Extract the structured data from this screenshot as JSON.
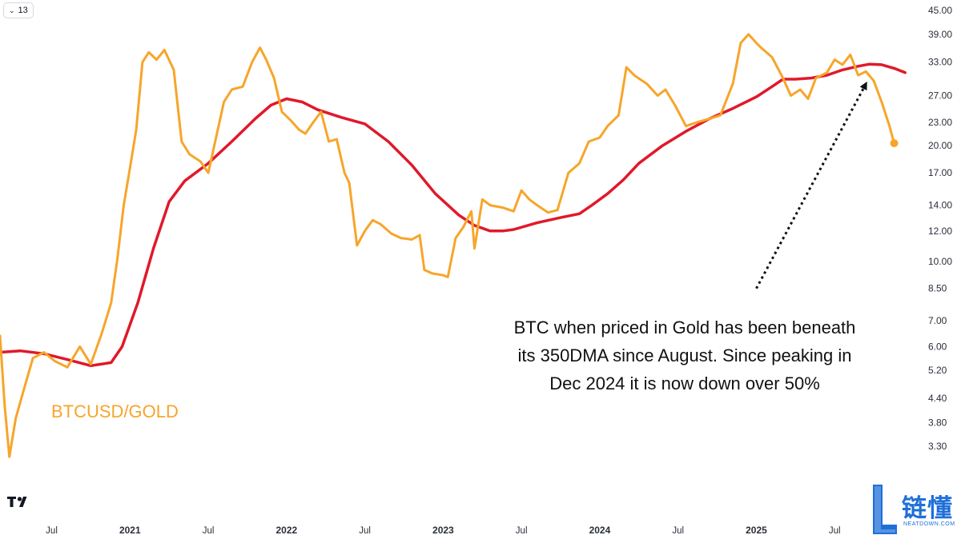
{
  "toolbar": {
    "interval_label": "13",
    "interval_icon": "chevron-down-icon"
  },
  "chart_data": {
    "type": "line",
    "title": "",
    "scale": "log",
    "ylim": [
      3.0,
      45.0
    ],
    "y_ticks": [
      "45.00",
      "39.00",
      "33.00",
      "27.00",
      "23.00",
      "20.00",
      "17.00",
      "14.00",
      "12.00",
      "10.00",
      "8.50",
      "7.00",
      "6.00",
      "5.20",
      "4.40",
      "3.80",
      "3.30"
    ],
    "x_ticks": [
      {
        "label": "Jul",
        "year": false,
        "t": 2020.5
      },
      {
        "label": "2021",
        "year": true,
        "t": 2021.0
      },
      {
        "label": "Jul",
        "year": false,
        "t": 2021.5
      },
      {
        "label": "2022",
        "year": true,
        "t": 2022.0
      },
      {
        "label": "Jul",
        "year": false,
        "t": 2022.5
      },
      {
        "label": "2023",
        "year": true,
        "t": 2023.0
      },
      {
        "label": "Jul",
        "year": false,
        "t": 2023.5
      },
      {
        "label": "2024",
        "year": true,
        "t": 2024.0
      },
      {
        "label": "Jul",
        "year": false,
        "t": 2024.5
      },
      {
        "label": "2025",
        "year": true,
        "t": 2025.0
      },
      {
        "label": "Jul",
        "year": false,
        "t": 2025.5
      }
    ],
    "xlim": [
      2020.17,
      2026.0
    ],
    "series": [
      {
        "name": "BTCUSD/GOLD",
        "color": "#f7a52a",
        "points": [
          [
            2020.17,
            6.4
          ],
          [
            2020.2,
            4.2
          ],
          [
            2020.23,
            3.1
          ],
          [
            2020.27,
            3.9
          ],
          [
            2020.32,
            4.6
          ],
          [
            2020.38,
            5.6
          ],
          [
            2020.45,
            5.8
          ],
          [
            2020.52,
            5.5
          ],
          [
            2020.6,
            5.3
          ],
          [
            2020.68,
            6.0
          ],
          [
            2020.75,
            5.4
          ],
          [
            2020.82,
            6.5
          ],
          [
            2020.88,
            7.8
          ],
          [
            2020.92,
            10.2
          ],
          [
            2020.96,
            14.0
          ],
          [
            2021.0,
            17.5
          ],
          [
            2021.04,
            22.0
          ],
          [
            2021.08,
            33.0
          ],
          [
            2021.12,
            35.0
          ],
          [
            2021.17,
            33.5
          ],
          [
            2021.22,
            35.5
          ],
          [
            2021.28,
            31.5
          ],
          [
            2021.33,
            20.5
          ],
          [
            2021.38,
            19.0
          ],
          [
            2021.45,
            18.2
          ],
          [
            2021.5,
            17.0
          ],
          [
            2021.55,
            21.0
          ],
          [
            2021.6,
            26.0
          ],
          [
            2021.65,
            28.0
          ],
          [
            2021.72,
            28.5
          ],
          [
            2021.78,
            33.0
          ],
          [
            2021.83,
            36.0
          ],
          [
            2021.87,
            33.5
          ],
          [
            2021.92,
            30.0
          ],
          [
            2021.97,
            24.5
          ],
          [
            2022.03,
            23.2
          ],
          [
            2022.08,
            22.0
          ],
          [
            2022.12,
            21.5
          ],
          [
            2022.17,
            23.0
          ],
          [
            2022.22,
            24.5
          ],
          [
            2022.27,
            20.5
          ],
          [
            2022.32,
            20.8
          ],
          [
            2022.37,
            17.0
          ],
          [
            2022.4,
            16.0
          ],
          [
            2022.45,
            11.0
          ],
          [
            2022.5,
            12.0
          ],
          [
            2022.55,
            12.8
          ],
          [
            2022.6,
            12.5
          ],
          [
            2022.67,
            11.8
          ],
          [
            2022.73,
            11.5
          ],
          [
            2022.8,
            11.4
          ],
          [
            2022.85,
            11.7
          ],
          [
            2022.88,
            9.5
          ],
          [
            2022.93,
            9.3
          ],
          [
            2023.0,
            9.2
          ],
          [
            2023.03,
            9.1
          ],
          [
            2023.08,
            11.5
          ],
          [
            2023.13,
            12.3
          ],
          [
            2023.18,
            13.5
          ],
          [
            2023.2,
            10.8
          ],
          [
            2023.25,
            14.5
          ],
          [
            2023.3,
            14.0
          ],
          [
            2023.38,
            13.8
          ],
          [
            2023.45,
            13.5
          ],
          [
            2023.5,
            15.3
          ],
          [
            2023.55,
            14.5
          ],
          [
            2023.6,
            14.0
          ],
          [
            2023.67,
            13.4
          ],
          [
            2023.73,
            13.6
          ],
          [
            2023.8,
            17.0
          ],
          [
            2023.87,
            18.0
          ],
          [
            2023.93,
            20.5
          ],
          [
            2024.0,
            21.0
          ],
          [
            2024.05,
            22.5
          ],
          [
            2024.12,
            24.0
          ],
          [
            2024.17,
            32.0
          ],
          [
            2024.22,
            30.5
          ],
          [
            2024.3,
            29.0
          ],
          [
            2024.37,
            27.0
          ],
          [
            2024.42,
            28.0
          ],
          [
            2024.48,
            25.5
          ],
          [
            2024.55,
            22.5
          ],
          [
            2024.62,
            23.0
          ],
          [
            2024.7,
            23.5
          ],
          [
            2024.77,
            24.0
          ],
          [
            2024.85,
            29.0
          ],
          [
            2024.9,
            37.0
          ],
          [
            2024.95,
            39.0
          ],
          [
            2025.0,
            37.0
          ],
          [
            2025.03,
            36.0
          ],
          [
            2025.1,
            34.0
          ],
          [
            2025.17,
            30.0
          ],
          [
            2025.22,
            27.0
          ],
          [
            2025.28,
            28.0
          ],
          [
            2025.33,
            26.5
          ],
          [
            2025.38,
            30.0
          ],
          [
            2025.45,
            31.0
          ],
          [
            2025.5,
            33.5
          ],
          [
            2025.55,
            32.5
          ],
          [
            2025.6,
            34.5
          ],
          [
            2025.65,
            30.5
          ],
          [
            2025.7,
            31.2
          ],
          [
            2025.75,
            29.5
          ],
          [
            2025.8,
            26.0
          ],
          [
            2025.85,
            22.5
          ],
          [
            2025.88,
            20.3
          ]
        ]
      },
      {
        "name": "350DMA",
        "color": "#e0192a",
        "points": [
          [
            2020.17,
            5.8
          ],
          [
            2020.3,
            5.85
          ],
          [
            2020.45,
            5.75
          ],
          [
            2020.6,
            5.55
          ],
          [
            2020.75,
            5.35
          ],
          [
            2020.88,
            5.45
          ],
          [
            2020.95,
            6.0
          ],
          [
            2021.05,
            7.8
          ],
          [
            2021.15,
            10.8
          ],
          [
            2021.25,
            14.3
          ],
          [
            2021.35,
            16.2
          ],
          [
            2021.5,
            18.0
          ],
          [
            2021.65,
            20.5
          ],
          [
            2021.8,
            23.5
          ],
          [
            2021.9,
            25.5
          ],
          [
            2022.0,
            26.5
          ],
          [
            2022.1,
            26.0
          ],
          [
            2022.2,
            24.8
          ],
          [
            2022.35,
            23.7
          ],
          [
            2022.5,
            22.8
          ],
          [
            2022.65,
            20.5
          ],
          [
            2022.8,
            17.8
          ],
          [
            2022.95,
            15.0
          ],
          [
            2023.1,
            13.2
          ],
          [
            2023.2,
            12.4
          ],
          [
            2023.3,
            12.0
          ],
          [
            2023.38,
            12.0
          ],
          [
            2023.45,
            12.1
          ],
          [
            2023.6,
            12.6
          ],
          [
            2023.75,
            13.0
          ],
          [
            2023.87,
            13.3
          ],
          [
            2023.95,
            14.0
          ],
          [
            2024.05,
            15.0
          ],
          [
            2024.15,
            16.3
          ],
          [
            2024.25,
            18.0
          ],
          [
            2024.4,
            20.0
          ],
          [
            2024.55,
            21.8
          ],
          [
            2024.7,
            23.5
          ],
          [
            2024.85,
            25.0
          ],
          [
            2025.0,
            26.8
          ],
          [
            2025.1,
            28.5
          ],
          [
            2025.17,
            29.8
          ],
          [
            2025.25,
            29.8
          ],
          [
            2025.35,
            30.0
          ],
          [
            2025.45,
            30.5
          ],
          [
            2025.55,
            31.5
          ],
          [
            2025.65,
            32.2
          ],
          [
            2025.72,
            32.6
          ],
          [
            2025.8,
            32.5
          ],
          [
            2025.88,
            31.8
          ],
          [
            2025.95,
            31.0
          ]
        ]
      }
    ],
    "series_label": "BTCUSD/GOLD",
    "annotation": {
      "lines": [
        "BTC when priced in Gold has been beneath",
        "its 350DMA since August. Since peaking in",
        "Dec 2024 it is now down over 50%"
      ],
      "arrow": {
        "from": [
          2025.0,
          8.5
        ],
        "to": [
          2025.7,
          29.0
        ]
      }
    }
  },
  "branding": {
    "chart_logo_text": "TV",
    "watermark_cn": "链懂",
    "watermark_en": "NEATDOWN.COM",
    "watermark_icon": "l-logo-icon"
  }
}
